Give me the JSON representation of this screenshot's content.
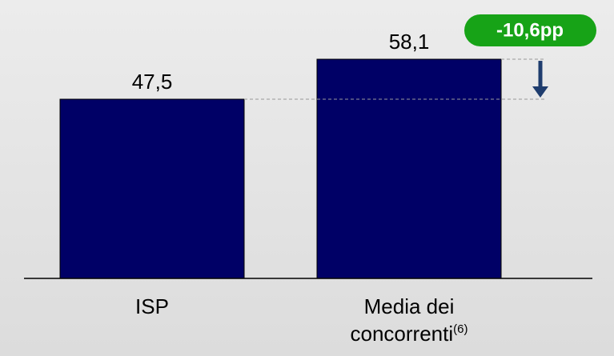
{
  "chart_data": {
    "type": "bar",
    "categories": [
      "ISP",
      "Media dei concorrenti"
    ],
    "superscripts": [
      null,
      "(6)"
    ],
    "values": [
      47.5,
      58.1
    ],
    "value_labels": [
      "47,5",
      "58,1"
    ],
    "color": "#000066",
    "ylim": [
      0,
      73.8
    ],
    "annotation": "-10,6pp",
    "annotation_color": "#17a317"
  }
}
